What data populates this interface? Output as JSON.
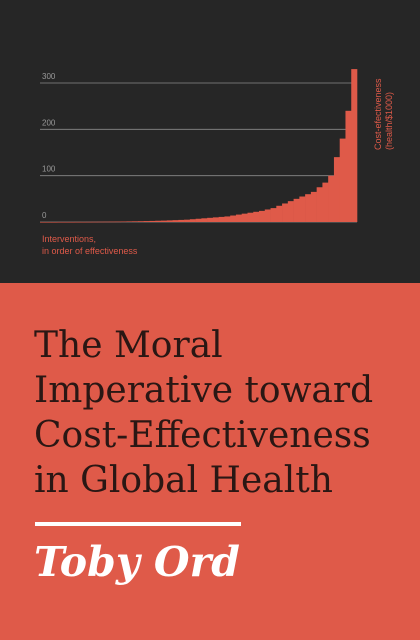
{
  "cover": {
    "title_lines": [
      "The Moral",
      "Imperative toward",
      "Cost-Effectiveness",
      "in Global Health"
    ],
    "author": "Toby Ord",
    "colors": {
      "top_background": "#262626",
      "accent": "#df5a49",
      "title_text": "#2a1714",
      "author_text": "#ffffff"
    }
  },
  "chart_data": {
    "type": "area",
    "xlabel_lines": [
      "Interventions,",
      "in order of effectiveness"
    ],
    "ylabel_lines": [
      "Cost-efectiveness",
      "(health/$1000)"
    ],
    "ylim": [
      0,
      300
    ],
    "y_ticks": [
      0,
      100,
      200,
      300
    ],
    "grid": true,
    "x": [
      0,
      2,
      4,
      6,
      8,
      10,
      12,
      14,
      16,
      18,
      20,
      22,
      24,
      26,
      28,
      30,
      32,
      34,
      36,
      38,
      40,
      42,
      44,
      46,
      48,
      50,
      52,
      54,
      56,
      58,
      60,
      62,
      64,
      66,
      68,
      70,
      72,
      74,
      76,
      78,
      80,
      82,
      84,
      86,
      88,
      90,
      92,
      94,
      96,
      98,
      100,
      102,
      104,
      106,
      108,
      110
    ],
    "values": [
      0.1,
      0.1,
      0.1,
      0.2,
      0.2,
      0.2,
      0.3,
      0.3,
      0.4,
      0.5,
      0.6,
      0.7,
      0.8,
      0.9,
      1.1,
      1.3,
      1.5,
      1.7,
      2,
      2.3,
      2.7,
      3,
      3.5,
      4,
      4.5,
      5,
      6,
      7,
      8,
      9,
      10,
      11,
      12,
      14,
      16,
      18,
      20,
      22,
      24,
      27,
      30,
      35,
      40,
      45,
      50,
      55,
      60,
      65,
      75,
      85,
      100,
      140,
      180,
      240,
      330,
      0
    ]
  }
}
